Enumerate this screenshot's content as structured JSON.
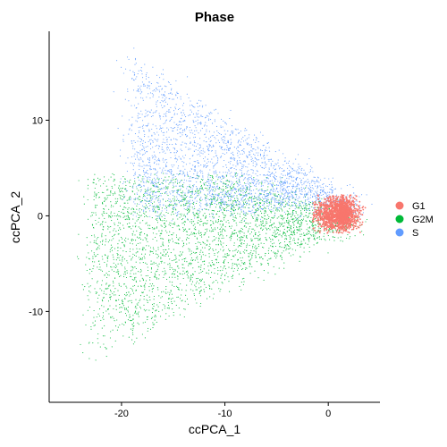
{
  "chart_data": {
    "type": "scatter",
    "title": "Phase",
    "xlabel": "ccPCA_1",
    "ylabel": "ccPCA_2",
    "xlim": [
      -27,
      5
    ],
    "ylim": [
      -19.5,
      19.3
    ],
    "xticks": [
      -20,
      -10,
      0
    ],
    "yticks": [
      -10,
      0,
      10
    ],
    "grid": false,
    "legend_position": "right",
    "series": [
      {
        "name": "G1",
        "color": "#F8766D",
        "cloud": {
          "center": [
            1.2,
            0.2
          ],
          "spread": [
            1.3,
            1.3
          ],
          "xrange": [
            -1.5,
            3.6
          ],
          "yrange": [
            -1.8,
            2.2
          ]
        }
      },
      {
        "name": "G2M",
        "color": "#00BA38",
        "cloud": {
          "apex": [
            3.0,
            -0.5
          ],
          "xmin": -23,
          "top": 4.0,
          "bottom_slope": 0.55,
          "yrange": [
            -18.5,
            4.5
          ]
        }
      },
      {
        "name": "S",
        "color": "#619CFF",
        "cloud": {
          "apex": [
            3.0,
            0.6
          ],
          "xmin": -19,
          "top_slope": 0.72,
          "floor": 1.0,
          "yrange": [
            -0.5,
            18
          ]
        }
      }
    ]
  }
}
